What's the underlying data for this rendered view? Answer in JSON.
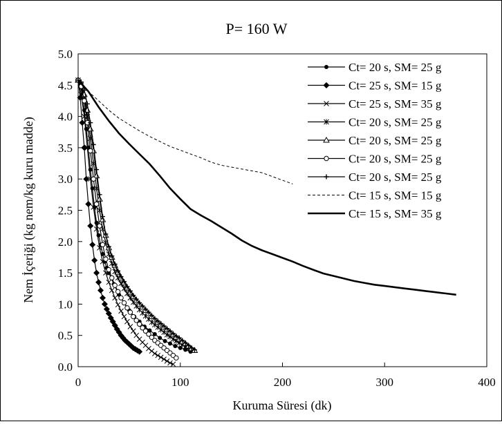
{
  "chart_data": {
    "type": "line",
    "title": "P= 160 W",
    "xlabel": "Kuruma Süresi (dk)",
    "ylabel": "Nem İçeriği (kg nem/kg kuru madde)",
    "xlim": [
      0,
      400
    ],
    "ylim": [
      0,
      5
    ],
    "xticks": [
      "0",
      "100",
      "200",
      "300",
      "400"
    ],
    "yticks": [
      "0.0",
      "0.5",
      "1.0",
      "1.5",
      "2.0",
      "2.5",
      "3.0",
      "3.5",
      "4.0",
      "4.5",
      "5.0"
    ],
    "grid": false,
    "legend_position": "top-right",
    "series": [
      {
        "name": "Ct= 20 s, SM= 25 g",
        "marker": "dot",
        "line": "solid",
        "x": [
          0,
          2,
          4,
          6,
          8,
          10,
          12,
          14,
          16,
          18,
          20,
          22,
          24,
          26,
          28,
          30,
          35,
          40,
          45,
          50,
          55,
          60,
          65,
          70,
          75,
          80,
          85,
          90,
          95,
          100,
          105,
          110
        ],
        "y": [
          4.58,
          4.5,
          4.35,
          4.1,
          3.8,
          3.5,
          3.15,
          2.85,
          2.55,
          2.3,
          2.1,
          1.95,
          1.8,
          1.68,
          1.58,
          1.5,
          1.32,
          1.15,
          1.02,
          0.9,
          0.8,
          0.72,
          0.64,
          0.58,
          0.52,
          0.46,
          0.41,
          0.37,
          0.33,
          0.3,
          0.27,
          0.24
        ]
      },
      {
        "name": "Ct= 25 s, SM= 15 g",
        "marker": "diamond",
        "line": "solid",
        "x": [
          0,
          2,
          4,
          6,
          8,
          10,
          12,
          14,
          16,
          18,
          20,
          22,
          24,
          26,
          28,
          30,
          32,
          34,
          36,
          38,
          40,
          42,
          44,
          46,
          48,
          50,
          52,
          54,
          56,
          58,
          60
        ],
        "y": [
          4.58,
          4.3,
          3.9,
          3.5,
          3.0,
          2.6,
          2.25,
          1.95,
          1.7,
          1.5,
          1.35,
          1.22,
          1.1,
          1.0,
          0.92,
          0.85,
          0.78,
          0.72,
          0.66,
          0.6,
          0.55,
          0.5,
          0.46,
          0.42,
          0.39,
          0.36,
          0.33,
          0.3,
          0.28,
          0.26,
          0.24
        ]
      },
      {
        "name": "Ct= 25 s, SM= 35 g",
        "marker": "x",
        "line": "solid",
        "x": [
          0,
          3,
          6,
          9,
          12,
          15,
          18,
          21,
          24,
          27,
          30,
          33,
          36,
          39,
          42,
          45,
          48,
          51,
          54,
          57,
          60,
          63,
          66,
          69,
          72,
          75,
          78,
          81,
          84,
          87,
          90,
          93
        ],
        "y": [
          4.58,
          4.35,
          4.0,
          3.5,
          3.0,
          2.55,
          2.2,
          1.9,
          1.68,
          1.5,
          1.35,
          1.22,
          1.1,
          0.99,
          0.89,
          0.8,
          0.72,
          0.64,
          0.57,
          0.5,
          0.44,
          0.39,
          0.34,
          0.29,
          0.25,
          0.21,
          0.18,
          0.15,
          0.12,
          0.09,
          0.06,
          0.04
        ]
      },
      {
        "name": "Ct= 20 s, SM= 25 g",
        "marker": "star",
        "line": "solid",
        "x": [
          0,
          3,
          6,
          9,
          12,
          15,
          18,
          21,
          24,
          27,
          30,
          33,
          36,
          39,
          42,
          45,
          48,
          51,
          54,
          57,
          60,
          63,
          66,
          69,
          72,
          75,
          78,
          81,
          84,
          87,
          90,
          93,
          96,
          99,
          102,
          105,
          108
        ],
        "y": [
          4.58,
          4.5,
          4.3,
          4.0,
          3.65,
          3.25,
          2.85,
          2.5,
          2.2,
          1.98,
          1.8,
          1.65,
          1.52,
          1.42,
          1.33,
          1.25,
          1.17,
          1.1,
          1.03,
          0.97,
          0.91,
          0.86,
          0.81,
          0.76,
          0.71,
          0.67,
          0.63,
          0.59,
          0.55,
          0.51,
          0.48,
          0.44,
          0.41,
          0.38,
          0.35,
          0.32,
          0.29
        ]
      },
      {
        "name": "Ct= 20 s, SM= 25 g",
        "marker": "triangle",
        "line": "solid",
        "x": [
          0,
          3,
          6,
          9,
          12,
          15,
          18,
          21,
          24,
          27,
          30,
          33,
          36,
          39,
          42,
          45,
          48,
          51,
          54,
          57,
          60,
          63,
          66,
          69,
          72,
          75,
          78,
          81,
          84,
          87,
          90,
          93,
          96,
          99,
          102,
          105,
          108,
          111,
          114
        ],
        "y": [
          4.58,
          4.52,
          4.35,
          4.1,
          3.8,
          3.45,
          3.05,
          2.68,
          2.35,
          2.1,
          1.9,
          1.75,
          1.62,
          1.51,
          1.42,
          1.34,
          1.26,
          1.19,
          1.12,
          1.06,
          1.0,
          0.95,
          0.9,
          0.85,
          0.8,
          0.75,
          0.71,
          0.67,
          0.63,
          0.59,
          0.55,
          0.51,
          0.47,
          0.44,
          0.4,
          0.37,
          0.33,
          0.29,
          0.26
        ]
      },
      {
        "name": "Ct= 20 s, SM= 25 g",
        "marker": "circle",
        "line": "solid",
        "x": [
          0,
          3,
          6,
          9,
          12,
          15,
          18,
          21,
          24,
          27,
          30,
          33,
          36,
          39,
          42,
          45,
          48,
          51,
          54,
          57,
          60,
          63,
          66,
          69,
          72,
          75,
          78,
          81,
          84,
          87,
          90,
          93,
          96
        ],
        "y": [
          4.58,
          4.48,
          4.25,
          3.9,
          3.45,
          3.0,
          2.6,
          2.25,
          1.95,
          1.72,
          1.55,
          1.42,
          1.3,
          1.2,
          1.1,
          1.02,
          0.94,
          0.87,
          0.8,
          0.74,
          0.68,
          0.62,
          0.57,
          0.52,
          0.47,
          0.42,
          0.38,
          0.34,
          0.3,
          0.26,
          0.22,
          0.18,
          0.14
        ]
      },
      {
        "name": "Ct= 20 s, SM= 25 g",
        "marker": "plus",
        "line": "solid",
        "x": [
          0,
          3,
          6,
          9,
          12,
          15,
          18,
          21,
          24,
          27,
          30,
          33,
          36,
          39,
          42,
          45,
          48,
          51,
          54,
          57,
          60,
          63,
          66,
          69,
          72,
          75,
          78,
          81,
          84,
          87,
          90,
          93,
          96,
          99,
          102,
          105,
          108,
          111,
          114
        ],
        "y": [
          4.58,
          4.55,
          4.42,
          4.2,
          3.9,
          3.55,
          3.15,
          2.75,
          2.4,
          2.12,
          1.92,
          1.77,
          1.64,
          1.53,
          1.44,
          1.36,
          1.28,
          1.21,
          1.14,
          1.08,
          1.02,
          0.97,
          0.92,
          0.87,
          0.82,
          0.77,
          0.73,
          0.69,
          0.65,
          0.61,
          0.57,
          0.53,
          0.49,
          0.46,
          0.42,
          0.38,
          0.34,
          0.3,
          0.27
        ]
      },
      {
        "name": "Ct= 15 s, SM= 15 g",
        "marker": "none",
        "line": "dashed",
        "x": [
          0,
          10,
          20,
          30,
          40,
          50,
          60,
          70,
          80,
          90,
          100,
          110,
          120,
          130,
          140,
          150,
          160,
          170,
          180,
          190,
          200,
          210
        ],
        "y": [
          4.58,
          4.4,
          4.25,
          4.1,
          3.97,
          3.87,
          3.77,
          3.68,
          3.6,
          3.52,
          3.46,
          3.4,
          3.34,
          3.27,
          3.22,
          3.19,
          3.16,
          3.13,
          3.1,
          3.04,
          2.98,
          2.92
        ]
      },
      {
        "name": "Ct= 15 s, SM= 35 g",
        "marker": "none",
        "line": "thick",
        "x": [
          0,
          10,
          20,
          30,
          40,
          50,
          60,
          70,
          80,
          90,
          100,
          110,
          120,
          130,
          140,
          150,
          160,
          170,
          180,
          190,
          200,
          210,
          220,
          230,
          240,
          250,
          260,
          270,
          280,
          290,
          300,
          310,
          320,
          330,
          340,
          350,
          360,
          370
        ],
        "y": [
          4.58,
          4.4,
          4.15,
          3.93,
          3.73,
          3.56,
          3.4,
          3.24,
          3.05,
          2.85,
          2.68,
          2.52,
          2.42,
          2.33,
          2.23,
          2.13,
          2.02,
          1.93,
          1.86,
          1.8,
          1.74,
          1.68,
          1.61,
          1.55,
          1.49,
          1.45,
          1.41,
          1.37,
          1.34,
          1.31,
          1.29,
          1.27,
          1.25,
          1.23,
          1.21,
          1.19,
          1.17,
          1.15
        ]
      }
    ]
  }
}
